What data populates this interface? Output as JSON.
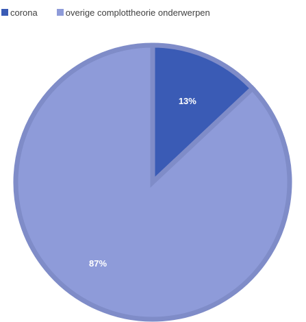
{
  "chart_data": {
    "type": "pie",
    "title": "",
    "categories": [
      "corona",
      "overige complottheorie onderwerpen"
    ],
    "values": [
      13,
      87
    ],
    "data_labels": [
      "13%",
      "87%"
    ],
    "colors": [
      "#3a5bb5",
      "#8e9bd9"
    ],
    "border_color": "#7f8cc8",
    "legend_position": "top"
  }
}
